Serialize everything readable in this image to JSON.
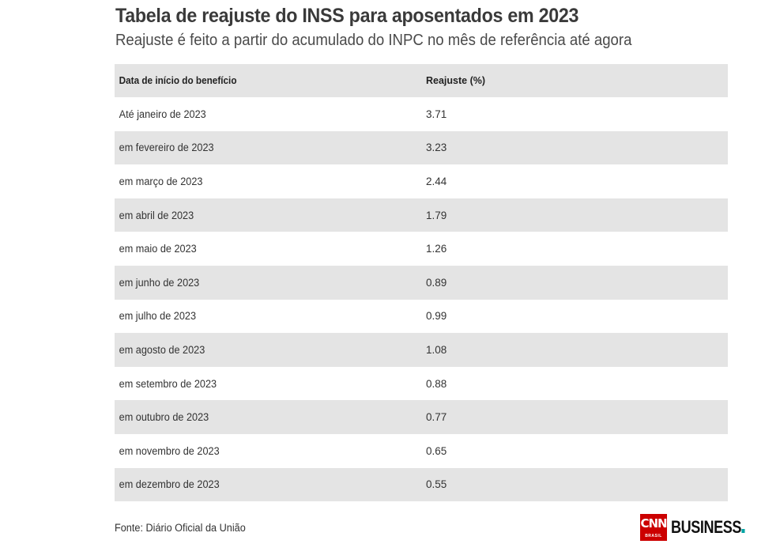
{
  "title": "Tabela de reajuste do INSS para aposentados em 2023",
  "subtitle": "Reajuste é feito a partir do acumulado do INPC no mês de referência até agora",
  "source": "Fonte: Diário Oficial da União",
  "logo": {
    "cnn": "CNN",
    "brasil": "BRASIL",
    "word": "BUSINESS"
  },
  "colors": {
    "shaded_row": "#e4e4e4",
    "logo_red": "#cc0000",
    "logo_accent": "#00a3a3"
  },
  "chart_data": {
    "type": "table",
    "title": "Tabela de reajuste do INSS para aposentados em 2023",
    "subtitle": "Reajuste é feito a partir do acumulado do INPC no mês de referência até agora",
    "columns": [
      "Data de início do benefício",
      "Reajuste (%)"
    ],
    "rows": [
      [
        "Até janeiro de 2023",
        "3.71"
      ],
      [
        "em fevereiro de 2023",
        "3.23"
      ],
      [
        "em março de 2023",
        "2.44"
      ],
      [
        "em abril de 2023",
        "1.79"
      ],
      [
        "em maio de 2023",
        "1.26"
      ],
      [
        "em junho de 2023",
        "0.89"
      ],
      [
        "em julho de 2023",
        "0.99"
      ],
      [
        "em agosto de 2023",
        "1.08"
      ],
      [
        "em setembro de 2023",
        "0.88"
      ],
      [
        "em outubro de 2023",
        "0.77"
      ],
      [
        "em novembro de 2023",
        "0.65"
      ],
      [
        "em dezembro de 2023",
        "0.55"
      ]
    ]
  }
}
